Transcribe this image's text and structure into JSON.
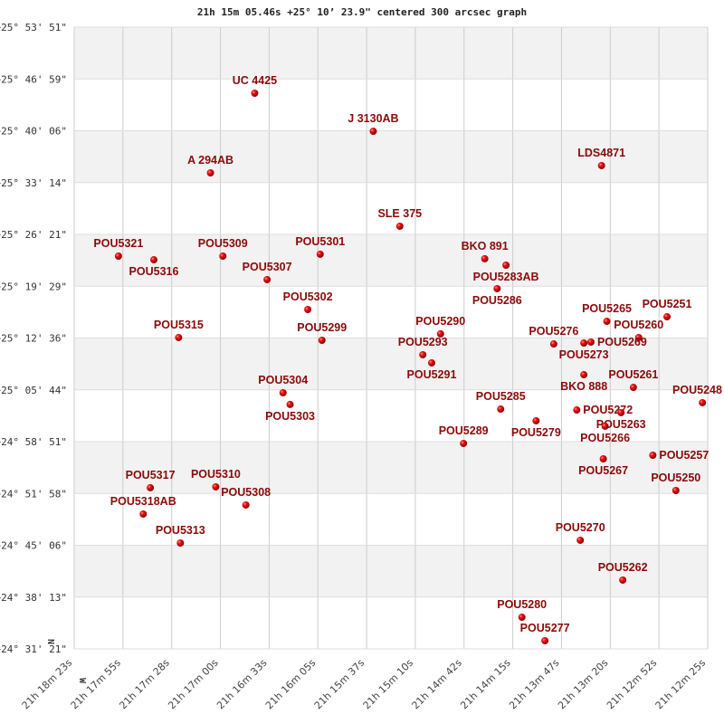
{
  "chart_data": {
    "type": "scatter",
    "title": "21h 15m 05.46s +25° 10’ 23.9\" centered 300 arcsec graph",
    "xlabel": "",
    "ylabel": "",
    "x_ticks": [
      "21h 18m 23s",
      "21h 17m 55s",
      "21h 17m 28s",
      "21h 17m 00s",
      "21h 16m 33s",
      "21h 16m 05s",
      "21h 15m 37s",
      "21h 15m 10s",
      "21h 14m 42s",
      "21h 14m 15s",
      "21h 13m 47s",
      "21h 13m 20s",
      "21h 12m 52s",
      "21h 12m 25s"
    ],
    "y_ticks": [
      "+25° 53' 51\"",
      "+25° 46' 59\"",
      "+25° 40' 06\"",
      "+25° 33' 14\"",
      "+25° 26' 21\"",
      "+25° 19' 29\"",
      "+25° 12' 36\"",
      "+25° 05' 44\"",
      "+24° 58' 51\"",
      "+24° 51' 58\"",
      "+24° 45' 06\"",
      "+24° 38' 13\"",
      "+24° 31' 21\""
    ],
    "xlim": [
      "21h 18m 23s",
      "21h 12m 25s"
    ],
    "ylim": [
      "+24° 31' 21\"",
      "+25° 53' 51\""
    ],
    "grid": true,
    "direction_labels": {
      "north": "N",
      "west": "W"
    },
    "colors": {
      "point": "#dd0000",
      "label": "#8b0a0a",
      "band": "#f2f2f2",
      "grid": "#cccccc"
    },
    "points": [
      {
        "name": "UC 4425",
        "ra": "21h 16m 41s",
        "dec": "+25° 45' 05\""
      },
      {
        "name": "J  3130AB",
        "ra": "21h 15m 34s",
        "dec": "+25° 40' 02\""
      },
      {
        "name": "A   294AB",
        "ra": "21h 17m 06s",
        "dec": "+25° 34' 31\""
      },
      {
        "name": "LDS4871",
        "ra": "21h 13m 25s",
        "dec": "+25° 35' 29\""
      },
      {
        "name": "SLE 375",
        "ra": "21h 15m 19s",
        "dec": "+25° 27' 26\""
      },
      {
        "name": "POU5321",
        "ra": "21h 17m 58s",
        "dec": "+25° 23' 28\""
      },
      {
        "name": "POU5316",
        "ra": "21h 17m 38s",
        "dec": "+25° 22' 59\""
      },
      {
        "name": "POU5309",
        "ra": "21h 16m 59s",
        "dec": "+25° 23' 28\""
      },
      {
        "name": "POU5301",
        "ra": "21h 16m 04s",
        "dec": "+25° 23' 43\""
      },
      {
        "name": "POU5307",
        "ra": "21h 16m 34s",
        "dec": "+25° 20' 21\""
      },
      {
        "name": "BKO 891",
        "ra": "21h 14m 31s",
        "dec": "+25° 23' 07\""
      },
      {
        "name": "POU5283AB",
        "ra": "21h 14m 19s",
        "dec": "+25° 22' 16\""
      },
      {
        "name": "POU5286",
        "ra": "21h 14m 24s",
        "dec": "+25° 19' 09\""
      },
      {
        "name": "POU5302",
        "ra": "21h 16m 11s",
        "dec": "+25° 16' 23\""
      },
      {
        "name": "POU5299",
        "ra": "21h 16m 03s",
        "dec": "+25° 12' 18\""
      },
      {
        "name": "POU5315",
        "ra": "21h 17m 24s",
        "dec": "+25° 12' 40\""
      },
      {
        "name": "POU5290",
        "ra": "21h 14m 56s",
        "dec": "+25° 13' 09\""
      },
      {
        "name": "POU5293",
        "ra": "21h 15m 06s",
        "dec": "+25° 10' 23\""
      },
      {
        "name": "POU5291",
        "ra": "21h 15m 01s",
        "dec": "+25° 09' 18\""
      },
      {
        "name": "POU5265",
        "ra": "21h 13m 22s",
        "dec": "+25° 14' 49\""
      },
      {
        "name": "POU5251",
        "ra": "21h 12m 48s",
        "dec": "+25° 15' 25\""
      },
      {
        "name": "POU5260",
        "ra": "21h 13m 04s",
        "dec": "+25° 12' 40\""
      },
      {
        "name": "POU5276",
        "ra": "21h 13m 52s",
        "dec": "+25° 11' 49\""
      },
      {
        "name": "POU5273",
        "ra": "21h 13m 35s",
        "dec": "+25° 11' 56\""
      },
      {
        "name": "POU5269",
        "ra": "21h 13m 31s",
        "dec": "+25° 12' 04\""
      },
      {
        "name": "BKO 888",
        "ra": "21h 13m 35s",
        "dec": "+25° 07' 44\""
      },
      {
        "name": "POU5261",
        "ra": "21h 13m 07s",
        "dec": "+25° 06' 03\""
      },
      {
        "name": "POU5248",
        "ra": "21h 12m 28s",
        "dec": "+25° 04' 01\""
      },
      {
        "name": "POU5304",
        "ra": "21h 16m 25s",
        "dec": "+25° 05' 20\""
      },
      {
        "name": "POU5303",
        "ra": "21h 16m 21s",
        "dec": "+25° 03' 47\""
      },
      {
        "name": "POU5285",
        "ra": "21h 14m 22s",
        "dec": "+25° 03' 10\""
      },
      {
        "name": "POU5279",
        "ra": "21h 14m 02s",
        "dec": "+25° 01' 37\""
      },
      {
        "name": "POU5272",
        "ra": "21h 13m 39s",
        "dec": "+25° 03' 03\""
      },
      {
        "name": "POU5263",
        "ra": "21h 13m 14s",
        "dec": "+25° 02' 42\""
      },
      {
        "name": "POU5266",
        "ra": "21h 13m 23s",
        "dec": "+25° 00' 54\""
      },
      {
        "name": "POU5289",
        "ra": "21h 14m 43s",
        "dec": "+24° 58' 37\""
      },
      {
        "name": "POU5267",
        "ra": "21h 13m 24s",
        "dec": "+24° 56' 34\""
      },
      {
        "name": "POU5257",
        "ra": "21h 12m 56s",
        "dec": "+24° 57' 03\""
      },
      {
        "name": "POU5250",
        "ra": "21h 12m 43s",
        "dec": "+24° 52' 22\""
      },
      {
        "name": "POU5317",
        "ra": "21h 17m 40s",
        "dec": "+24° 52' 44\""
      },
      {
        "name": "POU5310",
        "ra": "21h 17m 03s",
        "dec": "+24° 52' 51\""
      },
      {
        "name": "POU5308",
        "ra": "21h 16m 46s",
        "dec": "+24° 50' 27\""
      },
      {
        "name": "POU5318AB",
        "ra": "21h 17m 44s",
        "dec": "+24° 49' 15\""
      },
      {
        "name": "POU5313",
        "ra": "21h 17m 23s",
        "dec": "+24° 45' 24\""
      },
      {
        "name": "POU5270",
        "ra": "21h 13m 37s",
        "dec": "+24° 45' 46\""
      },
      {
        "name": "POU5262",
        "ra": "21h 13m 13s",
        "dec": "+24° 40' 29\""
      },
      {
        "name": "POU5280",
        "ra": "21h 14m 10s",
        "dec": "+24° 35' 33\""
      },
      {
        "name": "POU5277",
        "ra": "21h 13m 57s",
        "dec": "+24° 32' 26\""
      }
    ]
  }
}
